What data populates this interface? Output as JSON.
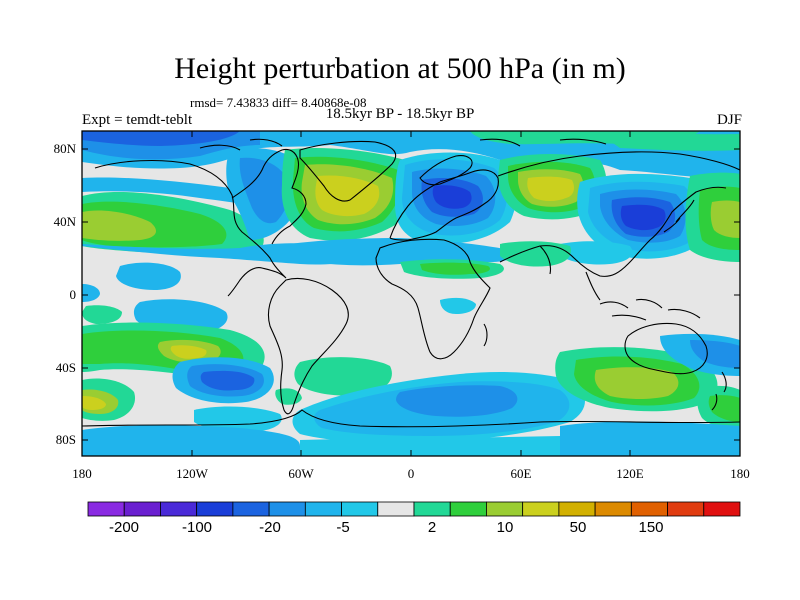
{
  "title": "Height perturbation at 500 hPa (in m)",
  "stats": "rmsd= 7.43833 diff= 8.40868e-08",
  "left_string": "Expt = temdt-teblt",
  "center_string": "18.5kyr BP - 18.5kyr BP",
  "right_string": "DJF",
  "lat_ticks": [
    "80N",
    "40N",
    "0",
    "40S",
    "80S"
  ],
  "lon_ticks": [
    "180",
    "120W",
    "60W",
    "0",
    "60E",
    "120E",
    "180"
  ],
  "colorbar": {
    "colors": [
      "#8a2be2",
      "#6a1fd0",
      "#4a2ad8",
      "#1a3ed8",
      "#1b63e0",
      "#1e90e8",
      "#20b4ec",
      "#22c8e8",
      "#e6e6e6",
      "#22d896",
      "#2fcf3c",
      "#9acd32",
      "#cbd01e",
      "#d2b000",
      "#dc8a00",
      "#e06000",
      "#e03c10",
      "#e01010"
    ],
    "labels": [
      "-200",
      "-100",
      "-20",
      "-5",
      "2",
      "10",
      "50",
      "150"
    ]
  }
}
